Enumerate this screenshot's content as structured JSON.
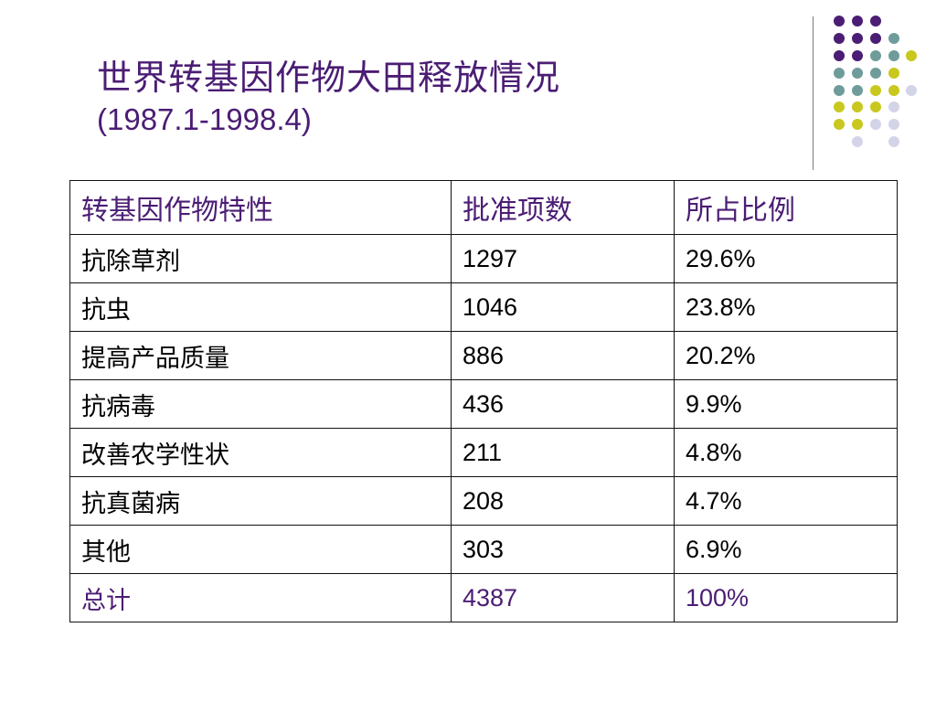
{
  "title": {
    "line1": "世界转基因作物大田释放情况",
    "line2": "(1987.1-1998.4)"
  },
  "colors": {
    "title": "#4b1d74",
    "dot_purple": "#4b1d74",
    "dot_teal": "#6f9c9a",
    "dot_yellow": "#c8c81e",
    "dot_lavender": "#d4d4e8"
  },
  "table": {
    "headers": [
      "转基因作物特性",
      "批准项数",
      "所占比例"
    ],
    "rows": [
      [
        "抗除草剂",
        "1297",
        "29.6%"
      ],
      [
        "抗虫",
        "1046",
        "23.8%"
      ],
      [
        "提高产品质量",
        "886",
        "20.2%"
      ],
      [
        "抗病毒",
        "436",
        "9.9%"
      ],
      [
        "改善农学性状",
        "211",
        "4.8%"
      ],
      [
        "抗真菌病",
        "208",
        "4.7%"
      ],
      [
        "其他",
        "303",
        "6.9%"
      ]
    ],
    "total": [
      "总计",
      "4387",
      "100%"
    ]
  }
}
